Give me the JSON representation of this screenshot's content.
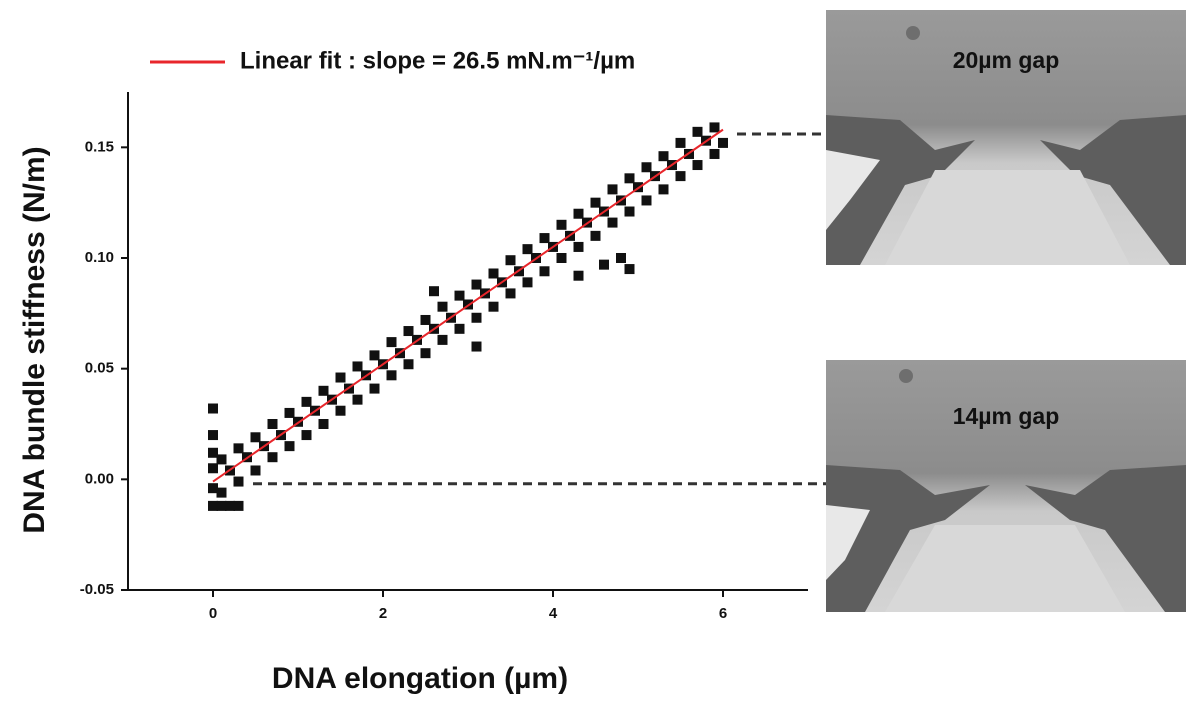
{
  "chart_data": {
    "type": "scatter",
    "xlabel": "DNA elongation (µm)",
    "ylabel": "DNA bundle stiffness (N/m)",
    "xlim": [
      -1,
      7
    ],
    "xticks": [
      0,
      2,
      4,
      6
    ],
    "ylim": [
      -0.05,
      0.175
    ],
    "yticks": [
      -0.05,
      {
        "value": 0,
        "label": "0.00"
      },
      0.05,
      {
        "value": 0.1,
        "label": "0.10"
      },
      0.15
    ],
    "reference_lines": [
      0.156,
      -0.002
    ],
    "annotations": [
      "20µm gap",
      "14µm gap"
    ],
    "series": [
      {
        "color": "#111111",
        "x": [
          0,
          0.2,
          0.4,
          0.6,
          0.8,
          1.0,
          1.2,
          1.4,
          1.6,
          1.8,
          2.0,
          2.2,
          2.4,
          2.6,
          2.8,
          3.0,
          3.2,
          3.4,
          3.6,
          3.8,
          4.0,
          4.2,
          4.4,
          4.6,
          4.8,
          5.0,
          5.2,
          5.4,
          5.6,
          5.8,
          6.0,
          0.1,
          0.3,
          0.5,
          0.7,
          0.9,
          1.1,
          1.3,
          1.5,
          1.7,
          1.9,
          2.1,
          2.3,
          2.5,
          2.7,
          2.9,
          3.1,
          3.3,
          3.5,
          3.7,
          3.9,
          4.1,
          4.3,
          4.5,
          4.7,
          4.9,
          5.1,
          5.3,
          5.5,
          5.7,
          5.9,
          0.1,
          0.3,
          0.5,
          0.7,
          0.9,
          1.1,
          1.3,
          1.5,
          1.7,
          1.9,
          2.1,
          2.3,
          2.5,
          2.7,
          2.9,
          3.1,
          3.3,
          3.5,
          3.7,
          3.9,
          4.1,
          4.3,
          4.5,
          4.7,
          4.9,
          5.1,
          5.3,
          5.5,
          5.7,
          5.9,
          0,
          0,
          0,
          0,
          0,
          0.1,
          0.2,
          0.3,
          2.6,
          4.3,
          4.6,
          4.8,
          4.9,
          3.1
        ],
        "values": [
          -0.004,
          0.004,
          0.01,
          0.015,
          0.02,
          0.026,
          0.031,
          0.036,
          0.041,
          0.047,
          0.052,
          0.057,
          0.063,
          0.068,
          0.073,
          0.079,
          0.084,
          0.089,
          0.094,
          0.1,
          0.105,
          0.11,
          0.116,
          0.121,
          0.126,
          0.132,
          0.137,
          0.142,
          0.147,
          0.153,
          0.152,
          0.009,
          0.014,
          0.019,
          0.025,
          0.03,
          0.035,
          0.04,
          0.046,
          0.051,
          0.056,
          0.062,
          0.067,
          0.072,
          0.078,
          0.083,
          0.088,
          0.093,
          0.099,
          0.104,
          0.109,
          0.115,
          0.12,
          0.125,
          0.131,
          0.136,
          0.141,
          0.146,
          0.152,
          0.157,
          0.159,
          -0.006,
          -0.001,
          0.004,
          0.01,
          0.015,
          0.02,
          0.025,
          0.031,
          0.036,
          0.041,
          0.047,
          0.052,
          0.057,
          0.063,
          0.068,
          0.073,
          0.078,
          0.084,
          0.089,
          0.094,
          0.1,
          0.105,
          0.11,
          0.116,
          0.121,
          0.126,
          0.131,
          0.137,
          0.142,
          0.147,
          0.032,
          0.02,
          0.012,
          0.005,
          -0.012,
          -0.012,
          -0.012,
          -0.012,
          0.085,
          0.092,
          0.097,
          0.1,
          0.095,
          0.06
        ]
      },
      {
        "name": "Linear fit : slope = 26.5 mN.m⁻¹/µm",
        "type": "line",
        "color": "#e8262b",
        "x": [
          0,
          6
        ],
        "values": [
          -0.001,
          0.158
        ]
      }
    ]
  }
}
